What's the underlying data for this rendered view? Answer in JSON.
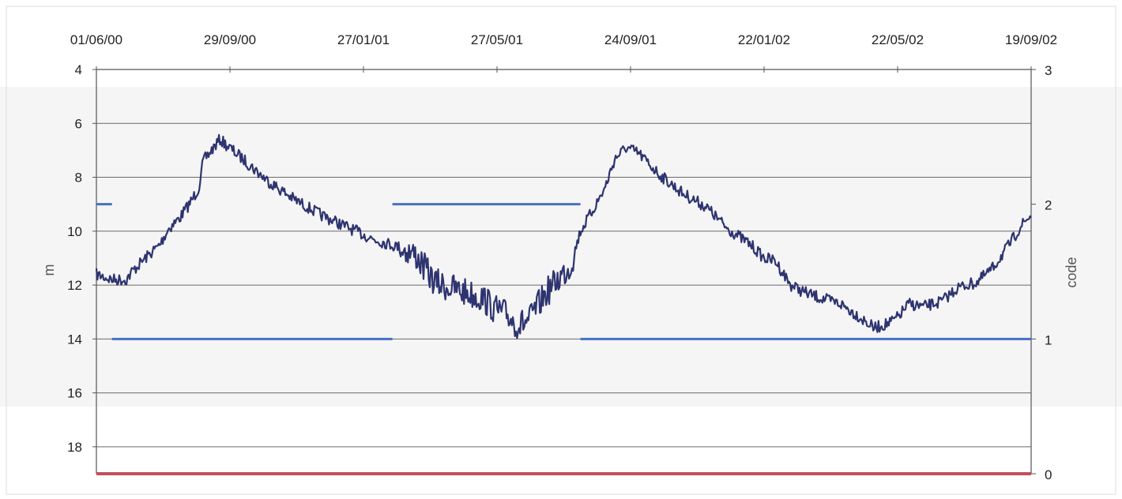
{
  "chart_data": {
    "type": "line",
    "title": "",
    "x_axis": {
      "type": "date",
      "position": "top",
      "range": [
        "2000-06-01",
        "2002-09-19"
      ],
      "ticks": [
        "2000-06-01",
        "2000-09-29",
        "2001-01-27",
        "2001-05-27",
        "2001-09-24",
        "2002-01-22",
        "2002-05-22",
        "2002-09-19"
      ],
      "tick_labels": [
        "01/06/00",
        "29/09/00",
        "27/01/01",
        "27/05/01",
        "24/09/01",
        "22/01/02",
        "22/05/02",
        "19/09/02"
      ]
    },
    "y_axis_left": {
      "label": "m",
      "inverted": true,
      "range": [
        4,
        19
      ],
      "ticks": [
        4,
        6,
        8,
        10,
        12,
        14,
        16,
        18
      ]
    },
    "y_axis_right": {
      "label": "code",
      "range": [
        0,
        3
      ],
      "ticks": [
        0,
        1,
        2,
        3
      ],
      "tick_labels": [
        "0",
        "1",
        "2",
        "3"
      ]
    },
    "grid": true,
    "legend": "none",
    "series": [
      {
        "axis": "left",
        "color": "#2e3470",
        "style": "noisy-line",
        "x": [
          "2000-06-01",
          "2000-06-15",
          "2000-06-28",
          "2000-07-03",
          "2000-07-15",
          "2000-07-28",
          "2000-08-05",
          "2000-08-15",
          "2000-08-25",
          "2000-09-01",
          "2000-09-05",
          "2000-09-20",
          "2000-10-10",
          "2000-11-01",
          "2000-11-25",
          "2000-12-20",
          "2001-01-15",
          "2001-02-05",
          "2001-03-01",
          "2001-03-15",
          "2001-04-01",
          "2001-04-15",
          "2001-05-01",
          "2001-05-15",
          "2001-05-25",
          "2001-06-05",
          "2001-06-15",
          "2001-06-25",
          "2001-07-10",
          "2001-07-25",
          "2001-08-01",
          "2001-08-10",
          "2001-08-20",
          "2001-09-01",
          "2001-09-10",
          "2001-09-20",
          "2001-10-01",
          "2001-10-20",
          "2001-11-10",
          "2001-12-01",
          "2001-12-20",
          "2002-01-10",
          "2002-01-22",
          "2002-02-01",
          "2002-02-15",
          "2002-03-01",
          "2002-03-15",
          "2002-04-01",
          "2002-04-15",
          "2002-05-01",
          "2002-05-15",
          "2002-05-22",
          "2002-06-01",
          "2002-06-15",
          "2002-07-01",
          "2002-07-15",
          "2002-08-01",
          "2002-08-15",
          "2002-09-01",
          "2002-09-10",
          "2002-09-19"
        ],
        "values": [
          11.6,
          11.8,
          11.8,
          11.5,
          11.0,
          10.5,
          9.9,
          9.5,
          8.9,
          8.4,
          7.4,
          6.6,
          7.3,
          8.1,
          8.8,
          9.4,
          9.9,
          10.3,
          10.6,
          10.9,
          11.9,
          12.1,
          12.3,
          12.5,
          12.9,
          13.1,
          13.5,
          13.3,
          12.3,
          11.6,
          11.3,
          10.0,
          9.3,
          8.4,
          7.3,
          6.9,
          7.1,
          7.9,
          8.6,
          9.1,
          9.9,
          10.5,
          11.0,
          11.1,
          12.0,
          12.3,
          12.5,
          12.7,
          13.1,
          13.6,
          13.4,
          13.2,
          12.7,
          12.8,
          12.6,
          12.1,
          11.9,
          11.4,
          10.4,
          9.8,
          9.4
        ]
      },
      {
        "axis": "right",
        "color": "#4472c4",
        "style": "step",
        "segments": [
          {
            "from": "2000-06-01",
            "to": "2000-06-15",
            "value": 2
          },
          {
            "from": "2000-06-15",
            "to": "2001-02-22",
            "value": 1
          },
          {
            "from": "2001-02-22",
            "to": "2001-08-10",
            "value": 2
          },
          {
            "from": "2001-08-10",
            "to": "2002-09-19",
            "value": 1
          }
        ]
      },
      {
        "axis": "right",
        "color": "#c0505a",
        "style": "line",
        "x": [
          "2000-06-01",
          "2002-09-19"
        ],
        "values": [
          0,
          0
        ]
      }
    ]
  }
}
